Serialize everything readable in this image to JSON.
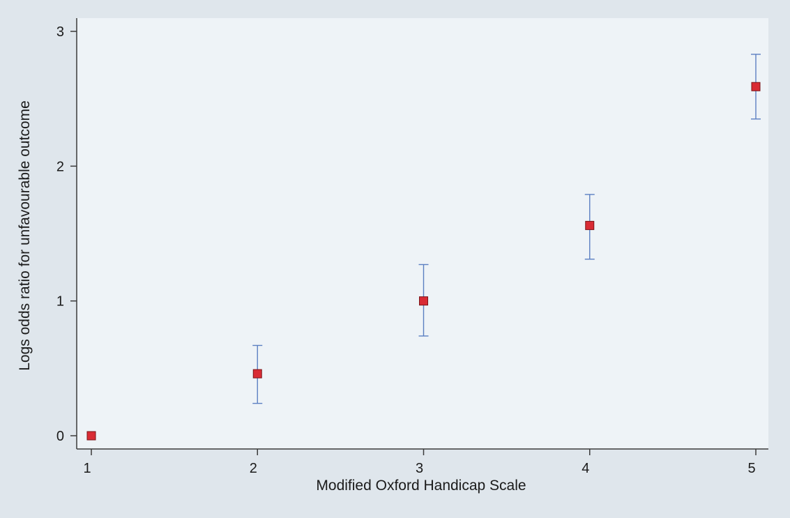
{
  "chart_data": {
    "type": "scatter",
    "xlabel": "Modified Oxford Handicap Scale",
    "ylabel": "Logs odds ratio for unfavourable outcome",
    "xlim": [
      1,
      5
    ],
    "ylim": [
      0,
      3
    ],
    "x_ticks": [
      1,
      2,
      3,
      4,
      5
    ],
    "y_ticks": [
      0,
      1,
      2,
      3
    ],
    "grid": false,
    "marker": "square",
    "colors": {
      "background": "#dfe6ec",
      "plot_area": "#eef3f7",
      "marker_fill": "#d92b34",
      "marker_edge": "#7a1418",
      "error_bar": "#5b7fc2",
      "axis": "#3a3a3a"
    },
    "points": [
      {
        "x": 1,
        "y": 0.0,
        "ci_low": 0.0,
        "ci_high": 0.0
      },
      {
        "x": 2,
        "y": 0.46,
        "ci_low": 0.24,
        "ci_high": 0.67
      },
      {
        "x": 3,
        "y": 1.0,
        "ci_low": 0.74,
        "ci_high": 1.27
      },
      {
        "x": 4,
        "y": 1.56,
        "ci_low": 1.31,
        "ci_high": 1.79
      },
      {
        "x": 5,
        "y": 2.59,
        "ci_low": 2.35,
        "ci_high": 2.83
      }
    ]
  }
}
